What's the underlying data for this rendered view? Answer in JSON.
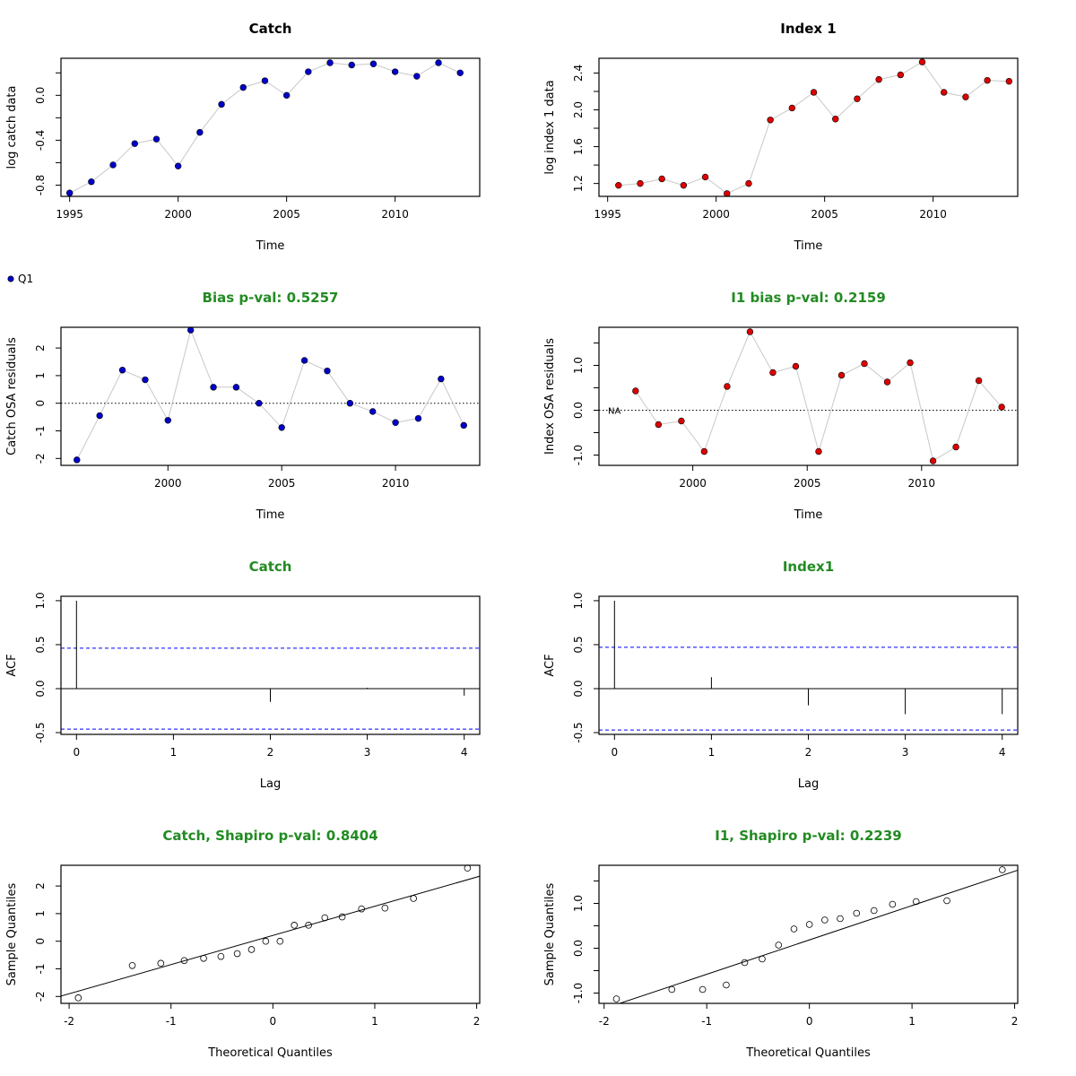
{
  "legend": {
    "label": "Q1",
    "color": "#0000cc"
  },
  "colors": {
    "catch_point": "#0000cc",
    "index_point": "#dd0000",
    "title_green": "#228b22",
    "ci_line": "#0000ff",
    "connector": "#c8c8c8"
  },
  "chart_data": [
    {
      "id": "catch-data",
      "type": "line",
      "title": "Catch",
      "title_color": "black",
      "xlabel": "Time",
      "ylabel": "log catch data",
      "xlim": [
        1994.6,
        2013.9
      ],
      "ylim": [
        -0.9,
        0.33
      ],
      "xticks": [
        1995,
        2000,
        2005,
        2010
      ],
      "yticks": [
        -0.8,
        -0.6,
        -0.4,
        -0.2,
        0.0,
        0.2
      ],
      "ytick_labels": [
        "-0.8",
        "",
        "-0.4",
        "",
        "0.0",
        ""
      ],
      "point_color": "#0000cc",
      "x": [
        1995,
        1996,
        1997,
        1998,
        1999,
        2000,
        2001,
        2002,
        2003,
        2004,
        2005,
        2006,
        2007,
        2008,
        2009,
        2010,
        2011,
        2012,
        2013
      ],
      "y": [
        -0.87,
        -0.77,
        -0.62,
        -0.43,
        -0.39,
        -0.63,
        -0.33,
        -0.08,
        0.07,
        0.13,
        0.0,
        0.21,
        0.29,
        0.27,
        0.28,
        0.21,
        0.17,
        0.29,
        0.2
      ]
    },
    {
      "id": "index-data",
      "type": "line",
      "title": "Index 1",
      "title_color": "black",
      "xlabel": "Time",
      "ylabel": "log index 1 data",
      "xlim": [
        1994.6,
        2013.9
      ],
      "ylim": [
        1.06,
        2.56
      ],
      "xticks": [
        1995,
        2000,
        2005,
        2010
      ],
      "yticks": [
        1.2,
        1.4,
        1.6,
        1.8,
        2.0,
        2.2,
        2.4
      ],
      "ytick_labels": [
        "1.2",
        "",
        "1.6",
        "",
        "2.0",
        "",
        "2.4"
      ],
      "point_color": "#dd0000",
      "x": [
        1995.5,
        1996.5,
        1997.5,
        1998.5,
        1999.5,
        2000.5,
        2001.5,
        2002.5,
        2003.5,
        2004.5,
        2005.5,
        2006.5,
        2007.5,
        2008.5,
        2009.5,
        2010.5,
        2011.5,
        2012.5,
        2013.5
      ],
      "y": [
        1.18,
        1.2,
        1.25,
        1.18,
        1.27,
        1.09,
        1.2,
        1.89,
        2.02,
        2.19,
        1.9,
        2.12,
        2.33,
        2.38,
        2.52,
        2.19,
        2.14,
        2.32,
        2.31
      ]
    },
    {
      "id": "catch-resid",
      "type": "line",
      "title": "Bias p-val: 0.5257",
      "title_color": "green",
      "xlabel": "Time",
      "ylabel": "Catch OSA residuals",
      "xlim": [
        1995.3,
        2013.7
      ],
      "ylim": [
        -2.25,
        2.75
      ],
      "xticks": [
        2000,
        2005,
        2010
      ],
      "yticks": [
        -2,
        -1,
        0,
        1,
        2
      ],
      "ytick_labels": [
        "-2",
        "-1",
        "0",
        "1",
        "2"
      ],
      "zero_line": true,
      "point_color": "#0000cc",
      "x": [
        1996,
        1997,
        1998,
        1999,
        2000,
        2001,
        2002,
        2003,
        2004,
        2005,
        2006,
        2007,
        2008,
        2009,
        2010,
        2011,
        2012,
        2013
      ],
      "y": [
        -2.05,
        -0.45,
        1.2,
        0.85,
        -0.62,
        2.65,
        0.58,
        0.58,
        0.0,
        -0.88,
        1.55,
        1.17,
        0.0,
        -0.3,
        -0.7,
        -0.55,
        0.88,
        -0.8
      ]
    },
    {
      "id": "index-resid",
      "type": "line",
      "title": "I1 bias p-val: 0.2159",
      "title_color": "green",
      "xlabel": "Time",
      "ylabel": "Index OSA residuals",
      "xlim": [
        1995.9,
        2014.2
      ],
      "ylim": [
        -1.23,
        1.85
      ],
      "xticks": [
        2000,
        2005,
        2010
      ],
      "yticks": [
        -1.0,
        -0.5,
        0.0,
        0.5,
        1.0,
        1.5
      ],
      "ytick_labels": [
        "-1.0",
        "",
        "0.0",
        "",
        "1.0",
        ""
      ],
      "zero_line": true,
      "na_label": "NA",
      "point_color": "#dd0000",
      "x": [
        1997.5,
        1998.5,
        1999.5,
        2000.5,
        2001.5,
        2002.5,
        2003.5,
        2004.5,
        2005.5,
        2006.5,
        2007.5,
        2008.5,
        2009.5,
        2010.5,
        2011.5,
        2012.5,
        2013.5
      ],
      "y": [
        0.43,
        -0.32,
        -0.24,
        -0.92,
        0.53,
        1.75,
        0.84,
        0.98,
        -0.92,
        0.78,
        1.04,
        0.63,
        1.06,
        -1.13,
        -0.82,
        0.66,
        0.07
      ]
    },
    {
      "id": "catch-acf",
      "type": "bar",
      "title": "Catch",
      "title_color": "green",
      "xlabel": "Lag",
      "ylabel": "ACF",
      "xlim": [
        -0.16,
        4.16
      ],
      "ylim": [
        -0.52,
        1.05
      ],
      "xticks": [
        0,
        1,
        2,
        3,
        4
      ],
      "yticks": [
        -0.5,
        0.0,
        0.5,
        1.0
      ],
      "ytick_labels": [
        "-0.5",
        "0.0",
        "0.5",
        "1.0"
      ],
      "ci": 0.46,
      "x": [
        0,
        1,
        2,
        3,
        4
      ],
      "y": [
        1.0,
        -0.005,
        -0.15,
        0.01,
        -0.08
      ]
    },
    {
      "id": "index-acf",
      "type": "bar",
      "title": "Index1",
      "title_color": "green",
      "xlabel": "Lag",
      "ylabel": "ACF",
      "xlim": [
        -0.16,
        4.16
      ],
      "ylim": [
        -0.52,
        1.05
      ],
      "xticks": [
        0,
        1,
        2,
        3,
        4
      ],
      "yticks": [
        -0.5,
        0.0,
        0.5,
        1.0
      ],
      "ytick_labels": [
        "-0.5",
        "0.0",
        "0.5",
        "1.0"
      ],
      "ci": 0.47,
      "x": [
        0,
        1,
        2,
        3,
        4
      ],
      "y": [
        1.0,
        0.13,
        -0.19,
        -0.29,
        -0.29
      ]
    },
    {
      "id": "catch-qq",
      "type": "scatter",
      "title": "Catch, Shapiro p-val: 0.8404",
      "title_color": "green",
      "xlabel": "Theoretical Quantiles",
      "ylabel": "Sample Quantiles",
      "xlim": [
        -2.08,
        2.03
      ],
      "ylim": [
        -2.25,
        2.75
      ],
      "xticks": [
        -2,
        -1,
        0,
        1,
        2
      ],
      "yticks": [
        -2,
        -1,
        0,
        1,
        2
      ],
      "ytick_labels": [
        "-2",
        "-1",
        "0",
        "1",
        "2"
      ],
      "qq_line": [
        [
          -2.5,
          -2.43
        ],
        [
          2.5,
          2.85
        ]
      ],
      "x": [
        -1.91,
        -1.38,
        -1.1,
        -0.87,
        -0.68,
        -0.51,
        -0.35,
        -0.21,
        -0.07,
        0.07,
        0.21,
        0.35,
        0.51,
        0.68,
        0.87,
        1.1,
        1.38,
        1.91
      ],
      "y": [
        -2.05,
        -0.88,
        -0.8,
        -0.7,
        -0.62,
        -0.55,
        -0.45,
        -0.3,
        0.0,
        0.0,
        0.58,
        0.58,
        0.85,
        0.88,
        1.17,
        1.2,
        1.55,
        2.65
      ]
    },
    {
      "id": "index-qq",
      "type": "scatter",
      "title": "I1, Shapiro p-val: 0.2239",
      "title_color": "green",
      "xlabel": "Theoretical Quantiles",
      "ylabel": "Sample Quantiles",
      "xlim": [
        -2.05,
        2.03
      ],
      "ylim": [
        -1.23,
        1.85
      ],
      "xticks": [
        -2,
        -1,
        0,
        1,
        2
      ],
      "yticks": [
        -1.0,
        -0.5,
        0.0,
        0.5,
        1.0,
        1.5
      ],
      "ytick_labels": [
        "-1.0",
        "",
        "0.0",
        "",
        "1.0",
        ""
      ],
      "qq_line": [
        [
          -2.5,
          -1.73
        ],
        [
          2.5,
          2.1
        ]
      ],
      "x": [
        -1.88,
        -1.34,
        -1.04,
        -0.81,
        -0.63,
        -0.46,
        -0.3,
        -0.15,
        0.0,
        0.15,
        0.3,
        0.46,
        0.63,
        0.81,
        1.04,
        1.34,
        1.88
      ],
      "y": [
        -1.13,
        -0.92,
        -0.92,
        -0.82,
        -0.32,
        -0.24,
        0.07,
        0.43,
        0.53,
        0.63,
        0.66,
        0.78,
        0.84,
        0.98,
        1.04,
        1.06,
        1.75
      ]
    }
  ]
}
